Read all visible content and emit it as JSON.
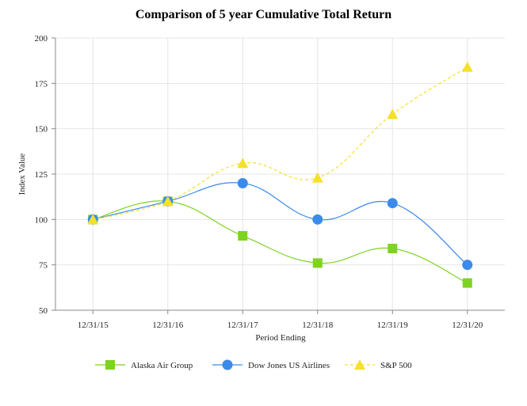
{
  "chart_data": {
    "type": "line",
    "title": "Comparison of 5 year Cumulative Total Return",
    "xlabel": "Period Ending",
    "ylabel": "Index Value",
    "categories": [
      "12/31/15",
      "12/31/16",
      "12/31/17",
      "12/31/18",
      "12/31/19",
      "12/31/20"
    ],
    "ylim": [
      50,
      200
    ],
    "yticks": [
      50,
      75,
      100,
      125,
      150,
      175,
      200
    ],
    "grid": true,
    "legend_position": "bottom",
    "series": [
      {
        "name": "Alaska Air Group",
        "values": [
          100,
          110,
          91,
          76,
          84,
          65
        ],
        "color": "#7ed321",
        "marker": "square",
        "dashed": false
      },
      {
        "name": "Dow Jones US Airlines",
        "values": [
          100,
          110,
          120,
          100,
          109,
          75
        ],
        "color": "#3b8bea",
        "marker": "circle",
        "dashed": false
      },
      {
        "name": "S&P 500",
        "values": [
          100,
          110,
          131,
          123,
          158,
          184
        ],
        "color": "#f5e02a",
        "marker": "triangle",
        "dashed": true
      }
    ]
  }
}
